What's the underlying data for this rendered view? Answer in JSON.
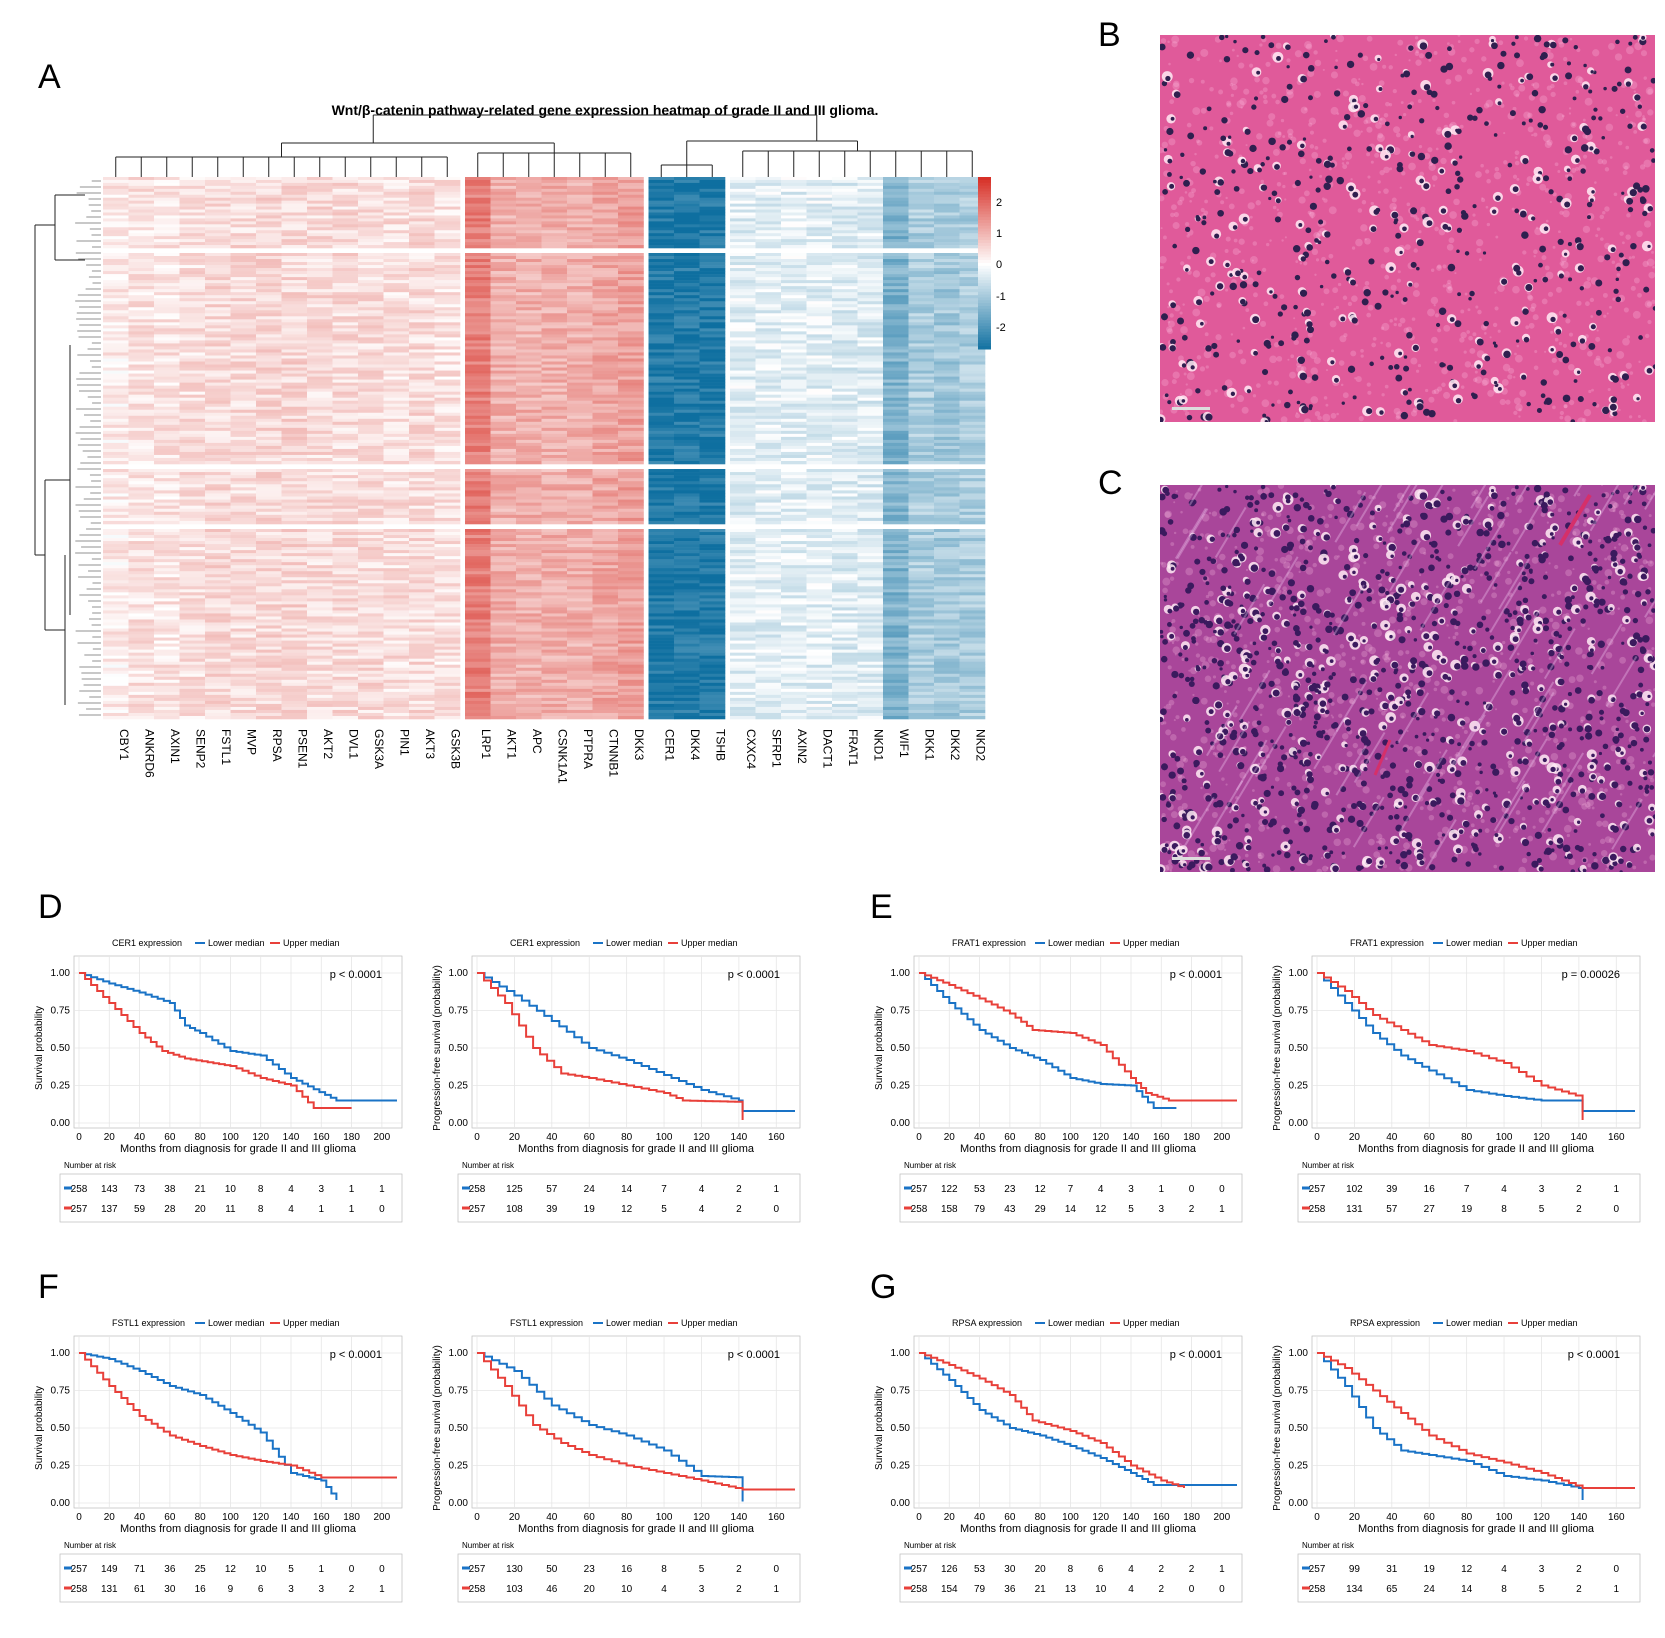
{
  "panels": {
    "A": "A",
    "B": "B",
    "C": "C",
    "D": "D",
    "E": "E",
    "F": "F",
    "G": "G"
  },
  "heatmap": {
    "title": "Wnt/β-catenin pathway-related gene expression heatmap of grade II and III glioma.",
    "genes": [
      "CBY1",
      "ANKRD6",
      "AXIN1",
      "SENP2",
      "FSTL1",
      "MVP",
      "RPSA",
      "PSEN1",
      "AKT2",
      "DVL1",
      "GSK3A",
      "PIN1",
      "AKT3",
      "GSK3B",
      "LRP1",
      "AKT1",
      "APC",
      "CSNK1A1",
      "PTPRA",
      "CTNNB1",
      "DKK3",
      "CER1",
      "DKK4",
      "TSHB",
      "CXXC4",
      "SFRP1",
      "AXIN2",
      "DACT1",
      "FRAT1",
      "NKD1",
      "WIF1",
      "DKK1",
      "DKK2",
      "NKD2"
    ],
    "mean_z": [
      0.25,
      0.35,
      0.35,
      0.4,
      0.5,
      0.45,
      0.5,
      0.5,
      0.45,
      0.45,
      0.45,
      0.4,
      0.45,
      0.35,
      1.6,
      1.0,
      1.0,
      1.0,
      1.0,
      1.1,
      1.2,
      -2.4,
      -2.4,
      -2.4,
      -0.3,
      -0.3,
      -0.3,
      -0.3,
      -0.35,
      -0.35,
      -1.4,
      -0.9,
      -1.0,
      -0.9
    ],
    "legend": {
      "ticks": [
        "2",
        "1",
        "0",
        "-1",
        "-2"
      ],
      "high": "#d73027",
      "mid": "#ffffff",
      "low": "#0e6fa0"
    }
  },
  "histology": {
    "B_color": "#e05a9a",
    "C_color": "#a9469a"
  },
  "km_plots": [
    {
      "panel": "D",
      "side": "left",
      "legend_title": "CER1 expression",
      "lower": "Lower median",
      "upper": "Upper median",
      "ylabel": "Survival probability",
      "xlabel": "Months from diagnosis for grade II and III glioma",
      "pvalue": "p < 0.0001",
      "xmax": 210,
      "xticks": [
        0,
        20,
        40,
        60,
        80,
        100,
        120,
        140,
        160,
        180,
        200
      ],
      "yticks": [
        "0.00",
        "0.25",
        "0.50",
        "0.75",
        "1.00"
      ],
      "risk_title": "Number at risk",
      "risk_lower": [
        "258",
        "143",
        "73",
        "38",
        "21",
        "10",
        "8",
        "4",
        "3",
        "1",
        "1"
      ],
      "risk_upper": [
        "257",
        "137",
        "59",
        "28",
        "20",
        "11",
        "8",
        "4",
        "1",
        "1",
        "0"
      ],
      "curve_lower": [
        [
          0,
          1
        ],
        [
          20,
          0.93
        ],
        [
          40,
          0.87
        ],
        [
          60,
          0.8
        ],
        [
          70,
          0.65
        ],
        [
          80,
          0.6
        ],
        [
          100,
          0.48
        ],
        [
          120,
          0.45
        ],
        [
          140,
          0.3
        ],
        [
          170,
          0.15
        ],
        [
          210,
          0.15
        ]
      ],
      "curve_upper": [
        [
          0,
          1
        ],
        [
          20,
          0.8
        ],
        [
          40,
          0.6
        ],
        [
          55,
          0.48
        ],
        [
          70,
          0.43
        ],
        [
          100,
          0.38
        ],
        [
          120,
          0.3
        ],
        [
          140,
          0.25
        ],
        [
          155,
          0.1
        ],
        [
          180,
          0.1
        ]
      ]
    },
    {
      "panel": "D",
      "side": "right",
      "legend_title": "CER1 expression",
      "lower": "Lower median",
      "upper": "Upper median",
      "ylabel": "Progression-free survival (probability)",
      "xlabel": "Months from diagnosis for grade II and III glioma",
      "pvalue": "p < 0.0001",
      "xmax": 170,
      "xticks": [
        0,
        20,
        40,
        60,
        80,
        100,
        120,
        140,
        160
      ],
      "yticks": [
        "0.00",
        "0.25",
        "0.50",
        "0.75",
        "1.00"
      ],
      "risk_title": "Number at risk",
      "risk_lower": [
        "258",
        "125",
        "57",
        "24",
        "14",
        "7",
        "4",
        "2",
        "1"
      ],
      "risk_upper": [
        "257",
        "108",
        "39",
        "19",
        "12",
        "5",
        "4",
        "2",
        "0"
      ],
      "curve_lower": [
        [
          0,
          1
        ],
        [
          20,
          0.85
        ],
        [
          40,
          0.68
        ],
        [
          60,
          0.5
        ],
        [
          80,
          0.42
        ],
        [
          100,
          0.32
        ],
        [
          120,
          0.22
        ],
        [
          140,
          0.15
        ],
        [
          142,
          0.08
        ],
        [
          170,
          0.08
        ]
      ],
      "curve_upper": [
        [
          0,
          1
        ],
        [
          15,
          0.8
        ],
        [
          30,
          0.5
        ],
        [
          45,
          0.33
        ],
        [
          60,
          0.3
        ],
        [
          80,
          0.25
        ],
        [
          100,
          0.2
        ],
        [
          110,
          0.15
        ],
        [
          142,
          0.14
        ],
        [
          142,
          0.02
        ]
      ]
    },
    {
      "panel": "E",
      "side": "left",
      "legend_title": "FRAT1 expression",
      "lower": "Lower median",
      "upper": "Upper median",
      "ylabel": "Survival probability",
      "xlabel": "Months from diagnosis for grade II and III glioma",
      "pvalue": "p < 0.0001",
      "xmax": 210,
      "xticks": [
        0,
        20,
        40,
        60,
        80,
        100,
        120,
        140,
        160,
        180,
        200
      ],
      "yticks": [
        "0.00",
        "0.25",
        "0.50",
        "0.75",
        "1.00"
      ],
      "risk_title": "Number at risk",
      "risk_lower": [
        "257",
        "122",
        "53",
        "23",
        "12",
        "7",
        "4",
        "3",
        "1",
        "0",
        "0"
      ],
      "risk_upper": [
        "258",
        "158",
        "79",
        "43",
        "29",
        "14",
        "12",
        "5",
        "3",
        "2",
        "1"
      ],
      "curve_lower": [
        [
          0,
          1
        ],
        [
          20,
          0.8
        ],
        [
          40,
          0.62
        ],
        [
          60,
          0.5
        ],
        [
          80,
          0.42
        ],
        [
          100,
          0.3
        ],
        [
          120,
          0.26
        ],
        [
          140,
          0.25
        ],
        [
          155,
          0.1
        ],
        [
          170,
          0.1
        ]
      ],
      "curve_upper": [
        [
          0,
          1
        ],
        [
          20,
          0.92
        ],
        [
          40,
          0.83
        ],
        [
          60,
          0.73
        ],
        [
          75,
          0.62
        ],
        [
          100,
          0.6
        ],
        [
          120,
          0.52
        ],
        [
          140,
          0.3
        ],
        [
          150,
          0.2
        ],
        [
          165,
          0.15
        ],
        [
          210,
          0.15
        ]
      ]
    },
    {
      "panel": "E",
      "side": "right",
      "legend_title": "FRAT1 expression",
      "lower": "Lower median",
      "upper": "Upper median",
      "ylabel": "Progression-free survival (probability)",
      "xlabel": "Months from diagnosis for grade II and III glioma",
      "pvalue": "p = 0.00026",
      "xmax": 170,
      "xticks": [
        0,
        20,
        40,
        60,
        80,
        100,
        120,
        140,
        160
      ],
      "yticks": [
        "0.00",
        "0.25",
        "0.50",
        "0.75",
        "1.00"
      ],
      "risk_title": "Number at risk",
      "risk_lower": [
        "257",
        "102",
        "39",
        "16",
        "7",
        "4",
        "3",
        "2",
        "1"
      ],
      "risk_upper": [
        "258",
        "131",
        "57",
        "27",
        "19",
        "8",
        "5",
        "2",
        "0"
      ],
      "curve_lower": [
        [
          0,
          1
        ],
        [
          15,
          0.8
        ],
        [
          30,
          0.6
        ],
        [
          45,
          0.45
        ],
        [
          60,
          0.35
        ],
        [
          80,
          0.22
        ],
        [
          100,
          0.18
        ],
        [
          120,
          0.15
        ],
        [
          142,
          0.15
        ],
        [
          142,
          0.08
        ],
        [
          170,
          0.08
        ]
      ],
      "curve_upper": [
        [
          0,
          1
        ],
        [
          15,
          0.88
        ],
        [
          30,
          0.72
        ],
        [
          45,
          0.62
        ],
        [
          60,
          0.52
        ],
        [
          80,
          0.48
        ],
        [
          100,
          0.4
        ],
        [
          120,
          0.25
        ],
        [
          142,
          0.17
        ],
        [
          142,
          0.02
        ]
      ]
    },
    {
      "panel": "F",
      "side": "left",
      "legend_title": "FSTL1 expression",
      "lower": "Lower median",
      "upper": "Upper median",
      "ylabel": "Survival probability",
      "xlabel": "Months from diagnosis for grade II and III glioma",
      "pvalue": "p < 0.0001",
      "xmax": 210,
      "xticks": [
        0,
        20,
        40,
        60,
        80,
        100,
        120,
        140,
        160,
        180,
        200
      ],
      "yticks": [
        "0.00",
        "0.25",
        "0.50",
        "0.75",
        "1.00"
      ],
      "risk_title": "Number at risk",
      "risk_lower": [
        "257",
        "149",
        "71",
        "36",
        "25",
        "12",
        "10",
        "5",
        "1",
        "0",
        "0"
      ],
      "risk_upper": [
        "258",
        "131",
        "61",
        "30",
        "16",
        "9",
        "6",
        "3",
        "3",
        "2",
        "1"
      ],
      "curve_lower": [
        [
          0,
          1
        ],
        [
          20,
          0.96
        ],
        [
          40,
          0.88
        ],
        [
          60,
          0.78
        ],
        [
          80,
          0.72
        ],
        [
          100,
          0.6
        ],
        [
          120,
          0.47
        ],
        [
          140,
          0.2
        ],
        [
          160,
          0.15
        ],
        [
          170,
          0.02
        ]
      ],
      "curve_upper": [
        [
          0,
          1
        ],
        [
          20,
          0.78
        ],
        [
          40,
          0.58
        ],
        [
          60,
          0.45
        ],
        [
          80,
          0.38
        ],
        [
          100,
          0.32
        ],
        [
          120,
          0.28
        ],
        [
          140,
          0.25
        ],
        [
          160,
          0.17
        ],
        [
          210,
          0.17
        ]
      ]
    },
    {
      "panel": "F",
      "side": "right",
      "legend_title": "FSTL1 expression",
      "lower": "Lower median",
      "upper": "Upper median",
      "ylabel": "Progression-free survival (probability)",
      "xlabel": "Months from diagnosis for grade II and III glioma",
      "pvalue": "p < 0.0001",
      "xmax": 170,
      "xticks": [
        0,
        20,
        40,
        60,
        80,
        100,
        120,
        140,
        160
      ],
      "yticks": [
        "0.00",
        "0.25",
        "0.50",
        "0.75",
        "1.00"
      ],
      "risk_title": "Number at risk",
      "risk_lower": [
        "257",
        "130",
        "50",
        "23",
        "16",
        "8",
        "5",
        "2",
        "0"
      ],
      "risk_upper": [
        "258",
        "103",
        "46",
        "20",
        "10",
        "4",
        "3",
        "2",
        "1"
      ],
      "curve_lower": [
        [
          0,
          1
        ],
        [
          20,
          0.88
        ],
        [
          40,
          0.65
        ],
        [
          60,
          0.52
        ],
        [
          80,
          0.45
        ],
        [
          100,
          0.35
        ],
        [
          120,
          0.18
        ],
        [
          142,
          0.17
        ],
        [
          142,
          0.01
        ]
      ],
      "curve_upper": [
        [
          0,
          1
        ],
        [
          15,
          0.78
        ],
        [
          30,
          0.52
        ],
        [
          45,
          0.4
        ],
        [
          60,
          0.32
        ],
        [
          80,
          0.25
        ],
        [
          100,
          0.2
        ],
        [
          120,
          0.15
        ],
        [
          142,
          0.09
        ],
        [
          170,
          0.09
        ]
      ]
    },
    {
      "panel": "G",
      "side": "left",
      "legend_title": "RPSA expression",
      "lower": "Lower median",
      "upper": "Upper median",
      "ylabel": "Survival probability",
      "xlabel": "Months from diagnosis for grade II and III glioma",
      "pvalue": "p < 0.0001",
      "xmax": 210,
      "xticks": [
        0,
        20,
        40,
        60,
        80,
        100,
        120,
        140,
        160,
        180,
        200
      ],
      "yticks": [
        "0.00",
        "0.25",
        "0.50",
        "0.75",
        "1.00"
      ],
      "risk_title": "Number at risk",
      "risk_lower": [
        "257",
        "126",
        "53",
        "30",
        "20",
        "8",
        "6",
        "4",
        "2",
        "2",
        "1"
      ],
      "risk_upper": [
        "258",
        "154",
        "79",
        "36",
        "21",
        "13",
        "10",
        "4",
        "2",
        "0",
        "0"
      ],
      "curve_lower": [
        [
          0,
          1
        ],
        [
          20,
          0.82
        ],
        [
          40,
          0.62
        ],
        [
          60,
          0.5
        ],
        [
          80,
          0.45
        ],
        [
          100,
          0.38
        ],
        [
          120,
          0.3
        ],
        [
          140,
          0.2
        ],
        [
          155,
          0.12
        ],
        [
          210,
          0.12
        ]
      ],
      "curve_upper": [
        [
          0,
          1
        ],
        [
          20,
          0.92
        ],
        [
          40,
          0.83
        ],
        [
          60,
          0.72
        ],
        [
          75,
          0.55
        ],
        [
          100,
          0.48
        ],
        [
          120,
          0.4
        ],
        [
          140,
          0.25
        ],
        [
          160,
          0.15
        ],
        [
          175,
          0.1
        ]
      ]
    },
    {
      "panel": "G",
      "side": "right",
      "legend_title": "RPSA expression",
      "lower": "Lower median",
      "upper": "Upper median",
      "ylabel": "Progression-free survival (probability)",
      "xlabel": "Months from diagnosis for grade II and III glioma",
      "pvalue": "p < 0.0001",
      "xmax": 170,
      "xticks": [
        0,
        20,
        40,
        60,
        80,
        100,
        120,
        140,
        160
      ],
      "yticks": [
        "0.00",
        "0.25",
        "0.50",
        "0.75",
        "1.00"
      ],
      "risk_title": "Number at risk",
      "risk_lower": [
        "257",
        "99",
        "31",
        "19",
        "12",
        "4",
        "3",
        "2",
        "0"
      ],
      "risk_upper": [
        "258",
        "134",
        "65",
        "24",
        "14",
        "8",
        "5",
        "2",
        "1"
      ],
      "curve_lower": [
        [
          0,
          1
        ],
        [
          15,
          0.78
        ],
        [
          30,
          0.5
        ],
        [
          45,
          0.35
        ],
        [
          60,
          0.32
        ],
        [
          80,
          0.28
        ],
        [
          100,
          0.18
        ],
        [
          120,
          0.15
        ],
        [
          140,
          0.1
        ],
        [
          142,
          0.02
        ]
      ],
      "curve_upper": [
        [
          0,
          1
        ],
        [
          15,
          0.9
        ],
        [
          30,
          0.75
        ],
        [
          45,
          0.6
        ],
        [
          60,
          0.45
        ],
        [
          80,
          0.33
        ],
        [
          100,
          0.27
        ],
        [
          120,
          0.2
        ],
        [
          142,
          0.1
        ],
        [
          170,
          0.1
        ]
      ]
    }
  ],
  "chart_data": {
    "type": "heatmap",
    "title": "Wnt/β-catenin pathway-related gene expression heatmap of grade II and III glioma.",
    "columns": [
      "CBY1",
      "ANKRD6",
      "AXIN1",
      "SENP2",
      "FSTL1",
      "MVP",
      "RPSA",
      "PSEN1",
      "AKT2",
      "DVL1",
      "GSK3A",
      "PIN1",
      "AKT3",
      "GSK3B",
      "LRP1",
      "AKT1",
      "APC",
      "CSNK1A1",
      "PTPRA",
      "CTNNB1",
      "DKK3",
      "CER1",
      "DKK4",
      "TSHB",
      "CXXC4",
      "SFRP1",
      "AXIN2",
      "DACT1",
      "FRAT1",
      "NKD1",
      "WIF1",
      "DKK1",
      "DKK2",
      "NKD2"
    ],
    "legend_range": [
      -2,
      2
    ]
  }
}
